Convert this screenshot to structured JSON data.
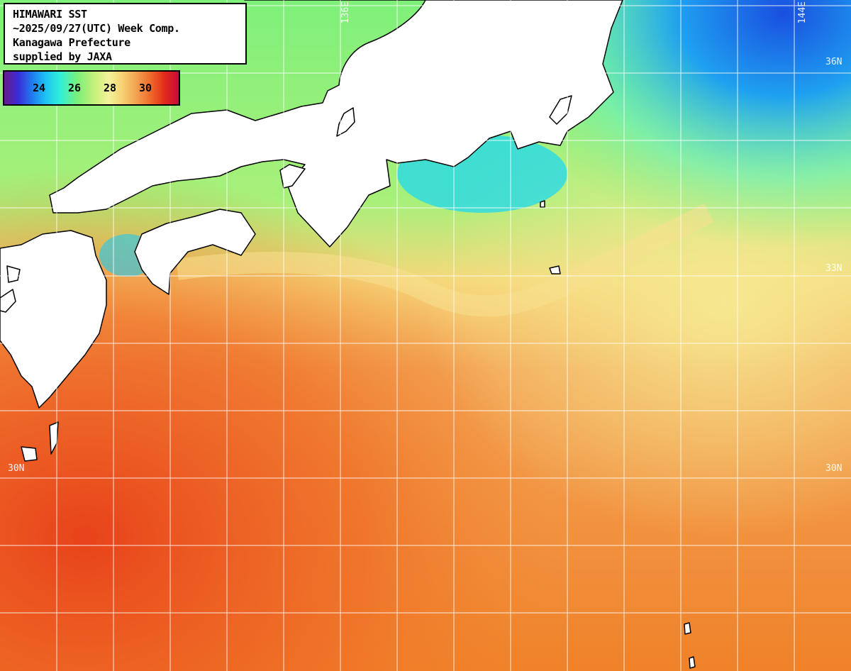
{
  "header": {
    "line1": "HIMAWARI SST",
    "line2": "~2025/09/27(UTC) Week Comp.",
    "line3": "Kanagawa Prefecture",
    "line4": "supplied by JAXA"
  },
  "legend": {
    "ticks": [
      "24",
      "26",
      "28",
      "30"
    ],
    "colors": [
      "#6a1a8a",
      "#1f7cf0",
      "#2ff0d8",
      "#7af07a",
      "#f4f29a",
      "#f3a050",
      "#e22a1a",
      "#c80a3a"
    ]
  },
  "grid_labels": {
    "lon_136": "136E",
    "lon_144": "144E",
    "lat_36": "36N",
    "lat_33": "33N",
    "lat_30_left": "30N",
    "lat_30_right": "30N"
  },
  "colors": {
    "land": "#ffffff",
    "coast": "#000000",
    "grid": "#ffffff",
    "warm": "#f07a2a",
    "cool": "#7ef07a",
    "cold": "#1ed0f0"
  }
}
